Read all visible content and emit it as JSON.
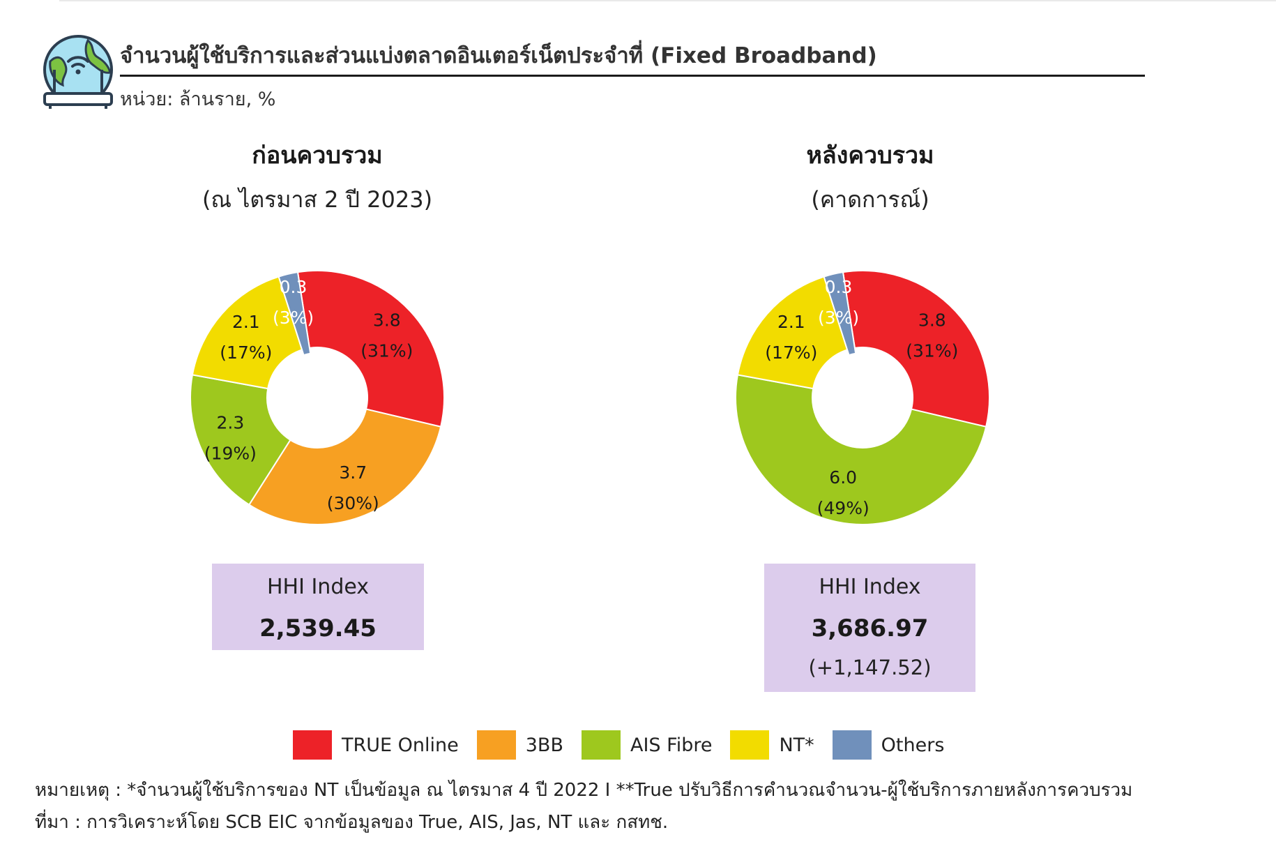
{
  "header": {
    "title": "จำนวนผู้ใช้บริการและส่วนแบ่งตลาดอินเตอร์เน็ตประจำที่ (Fixed Broadband)",
    "unit": "หน่วย: ล้านราย, %"
  },
  "logo": {
    "icon": "globe-wifi-router-icon"
  },
  "chart_data": [
    {
      "type": "pie",
      "title": "ก่อนควบรวม",
      "subtitle": "(ณ ไตรมาส 2 ปี 2023)",
      "slices": [
        {
          "name": "TRUE Online",
          "value": 3.8,
          "percent": "31%",
          "value_label": "3.8",
          "percent_label": "(31%)",
          "color": "#ed2228"
        },
        {
          "name": "3BB",
          "value": 3.7,
          "percent": "30%",
          "value_label": "3.7",
          "percent_label": "(30%)",
          "color": "#f7a022"
        },
        {
          "name": "AIS Fibre",
          "value": 2.3,
          "percent": "19%",
          "value_label": "2.3",
          "percent_label": "(19%)",
          "color": "#9ec81e"
        },
        {
          "name": "NT*",
          "value": 2.1,
          "percent": "17%",
          "value_label": "2.1",
          "percent_label": "(17%)",
          "color": "#f2dc00"
        },
        {
          "name": "Others",
          "value": 0.3,
          "percent": "3%",
          "value_label": "0.3",
          "percent_label": "(3%)",
          "color": "#7090bb"
        }
      ],
      "hhi": {
        "title": "HHI Index",
        "value": "2,539.45",
        "change": ""
      }
    },
    {
      "type": "pie",
      "title": "หลังควบรวม",
      "subtitle": "(คาดการณ์)",
      "slices": [
        {
          "name": "TRUE Online",
          "value": 3.8,
          "percent": "31%",
          "value_label": "3.8",
          "percent_label": "(31%)",
          "color": "#ed2228"
        },
        {
          "name": "AIS Fibre",
          "value": 6.0,
          "percent": "49%",
          "value_label": "6.0",
          "percent_label": "(49%)",
          "color": "#9ec81e"
        },
        {
          "name": "NT*",
          "value": 2.1,
          "percent": "17%",
          "value_label": "2.1",
          "percent_label": "(17%)",
          "color": "#f2dc00"
        },
        {
          "name": "Others",
          "value": 0.3,
          "percent": "3%",
          "value_label": "0.3",
          "percent_label": "(3%)",
          "color": "#7090bb"
        }
      ],
      "hhi": {
        "title": "HHI Index",
        "value": "3,686.97",
        "change": "(+1,147.52)"
      }
    }
  ],
  "legend": [
    {
      "label": "TRUE Online",
      "color": "#ed2228"
    },
    {
      "label": "3BB",
      "color": "#f7a022"
    },
    {
      "label": "AIS Fibre",
      "color": "#9ec81e"
    },
    {
      "label": "NT*",
      "color": "#f2dc00"
    },
    {
      "label": "Others",
      "color": "#7090bb"
    }
  ],
  "footnotes": {
    "note": "หมายเหตุ : *จำนวนผู้ใช้บริการของ NT เป็นข้อมูล ณ ไตรมาส 4 ปี 2022 I **True ปรับวิธีการคำนวณจำนวน-ผู้ใช้บริการภายหลังการควบรวม",
    "source": "ที่มา : การวิเคราะห์โดย SCB EIC จากข้อมูลของ True, AIS, Jas, NT และ กสทช."
  }
}
